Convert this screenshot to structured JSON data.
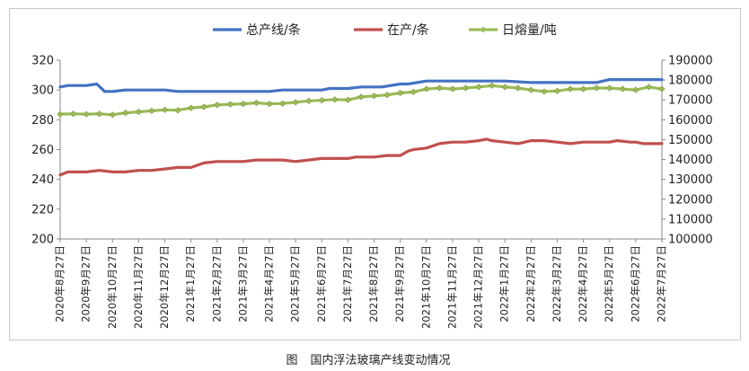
{
  "chart_data": {
    "type": "line",
    "caption_prefix": "图",
    "caption": "国内浮法玻璃产线变动情况",
    "xlabel": "",
    "ylabel_left": "",
    "ylabel_right": "",
    "y_left": {
      "min": 200,
      "max": 320,
      "ticks": [
        200,
        220,
        240,
        260,
        280,
        300,
        320
      ]
    },
    "y_right": {
      "min": 100000,
      "max": 190000,
      "ticks": [
        100000,
        110000,
        120000,
        130000,
        140000,
        150000,
        160000,
        170000,
        180000,
        190000
      ]
    },
    "tick_labels": [
      "2020年8月27日",
      "2020年9月27日",
      "2020年10月27日",
      "2020年11月27日",
      "2020年12月27日",
      "2021年1月27日",
      "2021年2月27日",
      "2021年3月27日",
      "2021年4月27日",
      "2021年5月27日",
      "2021年6月27日",
      "2021年7月27日",
      "2021年8月27日",
      "2021年9月27日",
      "2021年10月27日",
      "2021年11月27日",
      "2021年12月27日",
      "2022年1月27日",
      "2022年2月27日",
      "2022年3月27日",
      "2022年4月27日",
      "2022年5月27日",
      "2022年6月27日",
      "2022年7月27日"
    ],
    "x_range": [
      0,
      23
    ],
    "legend": {
      "position": "top"
    },
    "series": [
      {
        "name": "总产线/条",
        "axis": "left",
        "color": "#4472C4",
        "marker": "none",
        "x": [
          0,
          0.3,
          1,
          1.4,
          1.7,
          2,
          2.5,
          3,
          4,
          4.5,
          5,
          6,
          7,
          8,
          8.5,
          9,
          9.5,
          10,
          10.3,
          11,
          11.5,
          12,
          12.3,
          13,
          13.3,
          14,
          14.5,
          15,
          15.2,
          16,
          16.5,
          17,
          18,
          19,
          20,
          20.5,
          21,
          21.2,
          22,
          22.3,
          22.8,
          23
        ],
        "values": [
          302,
          303,
          303,
          304,
          299,
          299,
          300,
          300,
          300,
          299,
          299,
          299,
          299,
          299,
          300,
          300,
          300,
          300,
          301,
          301,
          302,
          302,
          302,
          304,
          304,
          306,
          306,
          306,
          306,
          306,
          306,
          306,
          305,
          305,
          305,
          305,
          307,
          307,
          307,
          307,
          307,
          307
        ]
      },
      {
        "name": "在产/条",
        "axis": "left",
        "color": "#C0504D",
        "marker": "none",
        "x": [
          0,
          0.3,
          1,
          1.5,
          2,
          2.5,
          3,
          3.5,
          4,
          4.5,
          5,
          5.5,
          6,
          6.5,
          7,
          7.5,
          8,
          8.5,
          9,
          9.5,
          10,
          10.5,
          11,
          11.3,
          12,
          12.5,
          13,
          13.3,
          13.5,
          14,
          14.5,
          15,
          15.3,
          15.5,
          16,
          16.3,
          16.5,
          17,
          17.5,
          18,
          18.5,
          19,
          19.5,
          20,
          20.5,
          21,
          21.3,
          21.8,
          22,
          22.3,
          22.8,
          23
        ],
        "values": [
          243,
          245,
          245,
          246,
          245,
          245,
          246,
          246,
          247,
          248,
          248,
          251,
          252,
          252,
          252,
          253,
          253,
          253,
          252,
          253,
          254,
          254,
          254,
          255,
          255,
          256,
          256,
          259,
          260,
          261,
          264,
          265,
          265,
          265,
          266,
          267,
          266,
          265,
          264,
          266,
          266,
          265,
          264,
          265,
          265,
          265,
          266,
          265,
          265,
          264,
          264,
          264
        ]
      },
      {
        "name": "日熔量/吨",
        "axis": "right",
        "color": "#9BBB59",
        "marker": "diamond",
        "x": [
          0,
          0.5,
          1,
          1.5,
          2,
          2.5,
          3,
          3.5,
          4,
          4.5,
          5,
          5.5,
          6,
          6.5,
          7,
          7.5,
          8,
          8.5,
          9,
          9.5,
          10,
          10.5,
          11,
          11.5,
          12,
          12.5,
          13,
          13.5,
          14,
          14.5,
          15,
          15.5,
          16,
          16.5,
          17,
          17.5,
          18,
          18.5,
          19,
          19.5,
          20,
          20.5,
          21,
          21.5,
          22,
          22.5,
          23
        ],
        "values": [
          162800,
          163000,
          162800,
          163000,
          162500,
          163500,
          164000,
          164500,
          165000,
          164800,
          166000,
          166500,
          167500,
          167800,
          168000,
          168500,
          168000,
          168200,
          168800,
          169500,
          169800,
          170200,
          170000,
          171500,
          172000,
          172500,
          173500,
          174000,
          175500,
          176000,
          175500,
          176000,
          176500,
          177200,
          176500,
          176000,
          175000,
          174200,
          174500,
          175500,
          175500,
          176000,
          176000,
          175500,
          175000,
          176500,
          175500
        ]
      }
    ]
  }
}
